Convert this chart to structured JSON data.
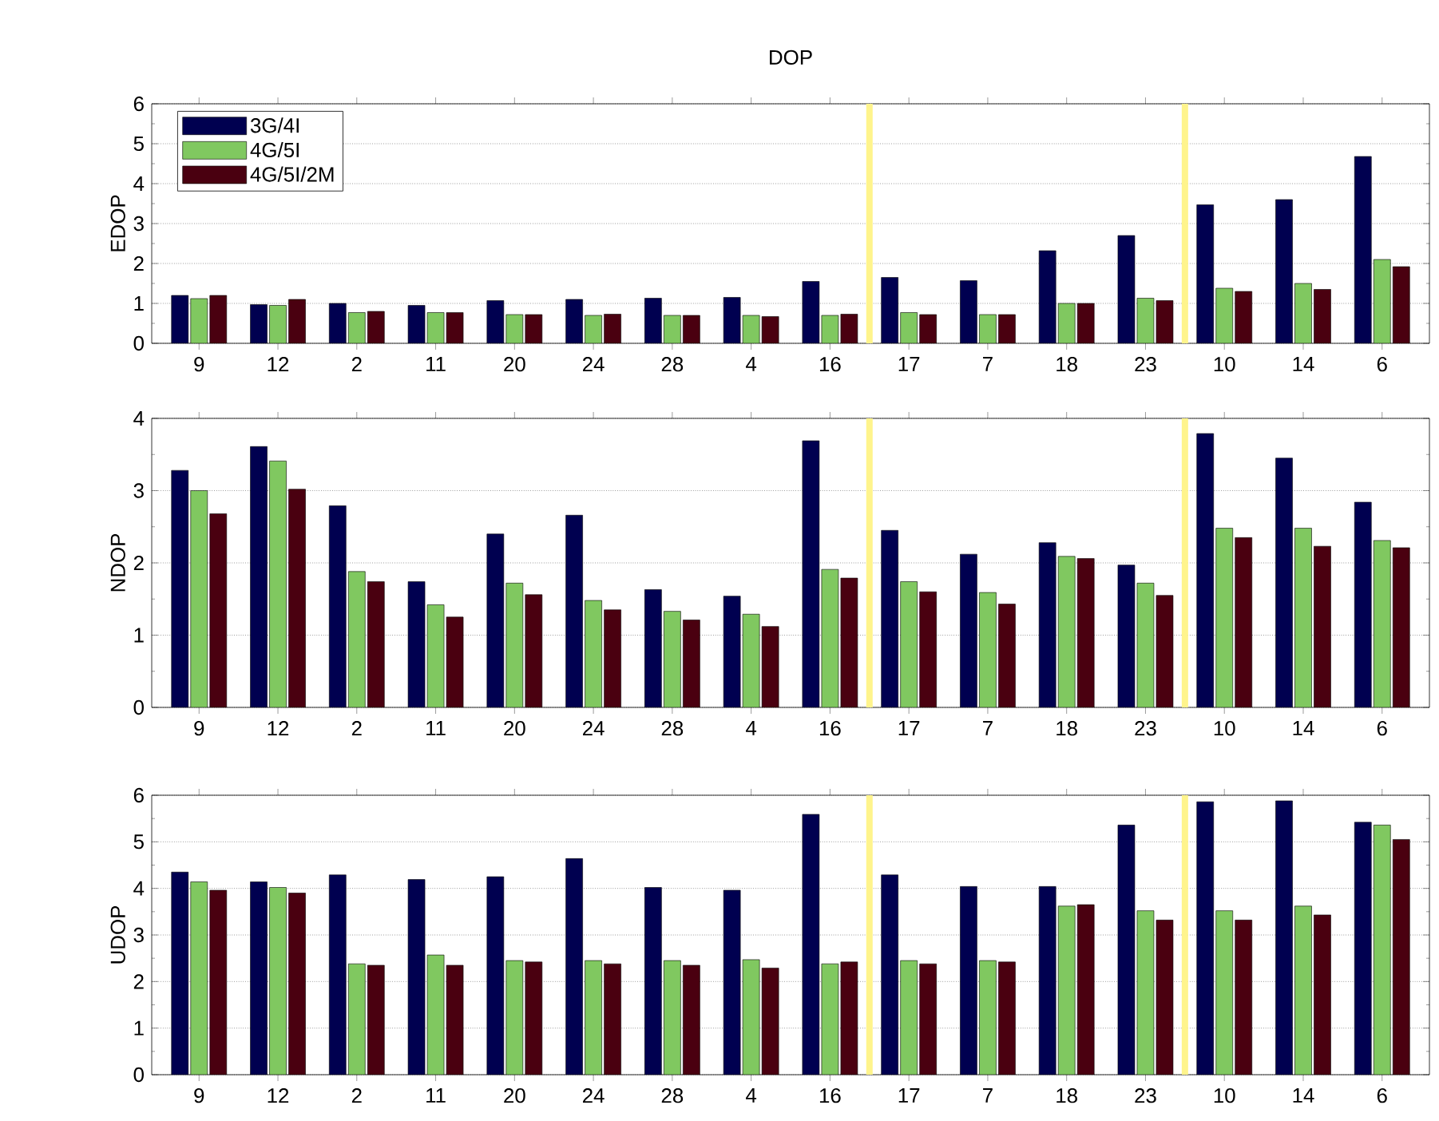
{
  "chart_data": [
    {
      "type": "bar",
      "title": "DOP",
      "ylabel": "EDOP",
      "categories": [
        "9",
        "12",
        "2",
        "11",
        "20",
        "24",
        "28",
        "4",
        "16",
        "17",
        "7",
        "18",
        "23",
        "10",
        "14",
        "6"
      ],
      "ylim": [
        0,
        6
      ],
      "yticks": [
        0,
        1,
        2,
        3,
        4,
        5,
        6
      ],
      "grid": "y",
      "legend": "top left",
      "series": [
        {
          "name": "3G/4I",
          "color": "#000050",
          "values": [
            1.2,
            0.97,
            1.0,
            0.95,
            1.07,
            1.1,
            1.13,
            1.15,
            1.55,
            1.65,
            1.57,
            2.32,
            2.7,
            3.47,
            3.6,
            4.68
          ]
        },
        {
          "name": "4G/5I",
          "color": "#80c860",
          "values": [
            1.12,
            0.95,
            0.77,
            0.77,
            0.72,
            0.7,
            0.7,
            0.7,
            0.7,
            0.77,
            0.72,
            1.0,
            1.13,
            1.38,
            1.5,
            2.1
          ]
        },
        {
          "name": "4G/5I/2M",
          "color": "#4a0010",
          "values": [
            1.2,
            1.1,
            0.8,
            0.77,
            0.72,
            0.73,
            0.7,
            0.67,
            0.73,
            0.72,
            0.72,
            1.0,
            1.07,
            1.3,
            1.35,
            1.92
          ]
        }
      ]
    },
    {
      "type": "bar",
      "ylabel": "NDOP",
      "categories": [
        "9",
        "12",
        "2",
        "11",
        "20",
        "24",
        "28",
        "4",
        "16",
        "17",
        "7",
        "18",
        "23",
        "10",
        "14",
        "6"
      ],
      "ylim": [
        0,
        4
      ],
      "yticks": [
        0,
        1,
        2,
        3,
        4
      ],
      "grid": "y",
      "series": [
        {
          "color": "#000050",
          "values": [
            3.28,
            3.61,
            2.79,
            1.74,
            2.4,
            2.66,
            1.63,
            1.54,
            3.69,
            2.45,
            2.12,
            2.28,
            1.97,
            3.79,
            3.45,
            2.84
          ]
        },
        {
          "color": "#80c860",
          "values": [
            3.0,
            3.41,
            1.88,
            1.42,
            1.72,
            1.48,
            1.33,
            1.29,
            1.91,
            1.74,
            1.59,
            2.09,
            1.72,
            2.48,
            2.48,
            2.31
          ]
        },
        {
          "color": "#4a0010",
          "values": [
            2.68,
            3.02,
            1.74,
            1.25,
            1.56,
            1.35,
            1.21,
            1.12,
            1.79,
            1.6,
            1.43,
            2.06,
            1.55,
            2.35,
            2.23,
            2.21
          ]
        }
      ]
    },
    {
      "type": "bar",
      "ylabel": "UDOP",
      "categories": [
        "9",
        "12",
        "2",
        "11",
        "20",
        "24",
        "28",
        "4",
        "16",
        "17",
        "7",
        "18",
        "23",
        "10",
        "14",
        "6"
      ],
      "ylim": [
        0,
        6
      ],
      "yticks": [
        0,
        1,
        2,
        3,
        4,
        5,
        6
      ],
      "grid": "y",
      "series": [
        {
          "color": "#000050",
          "values": [
            4.35,
            4.14,
            4.29,
            4.19,
            4.25,
            4.64,
            4.02,
            3.96,
            5.59,
            4.29,
            4.04,
            4.04,
            5.36,
            5.86,
            5.88,
            5.42
          ]
        },
        {
          "color": "#80c860",
          "values": [
            4.14,
            4.02,
            2.38,
            2.57,
            2.45,
            2.45,
            2.45,
            2.47,
            2.38,
            2.45,
            2.45,
            3.62,
            3.52,
            3.52,
            3.62,
            5.36
          ]
        },
        {
          "color": "#4a0010",
          "values": [
            3.96,
            3.9,
            2.35,
            2.35,
            2.42,
            2.38,
            2.35,
            2.29,
            2.42,
            2.38,
            2.42,
            3.65,
            3.32,
            3.32,
            3.43,
            5.05
          ]
        }
      ]
    }
  ]
}
